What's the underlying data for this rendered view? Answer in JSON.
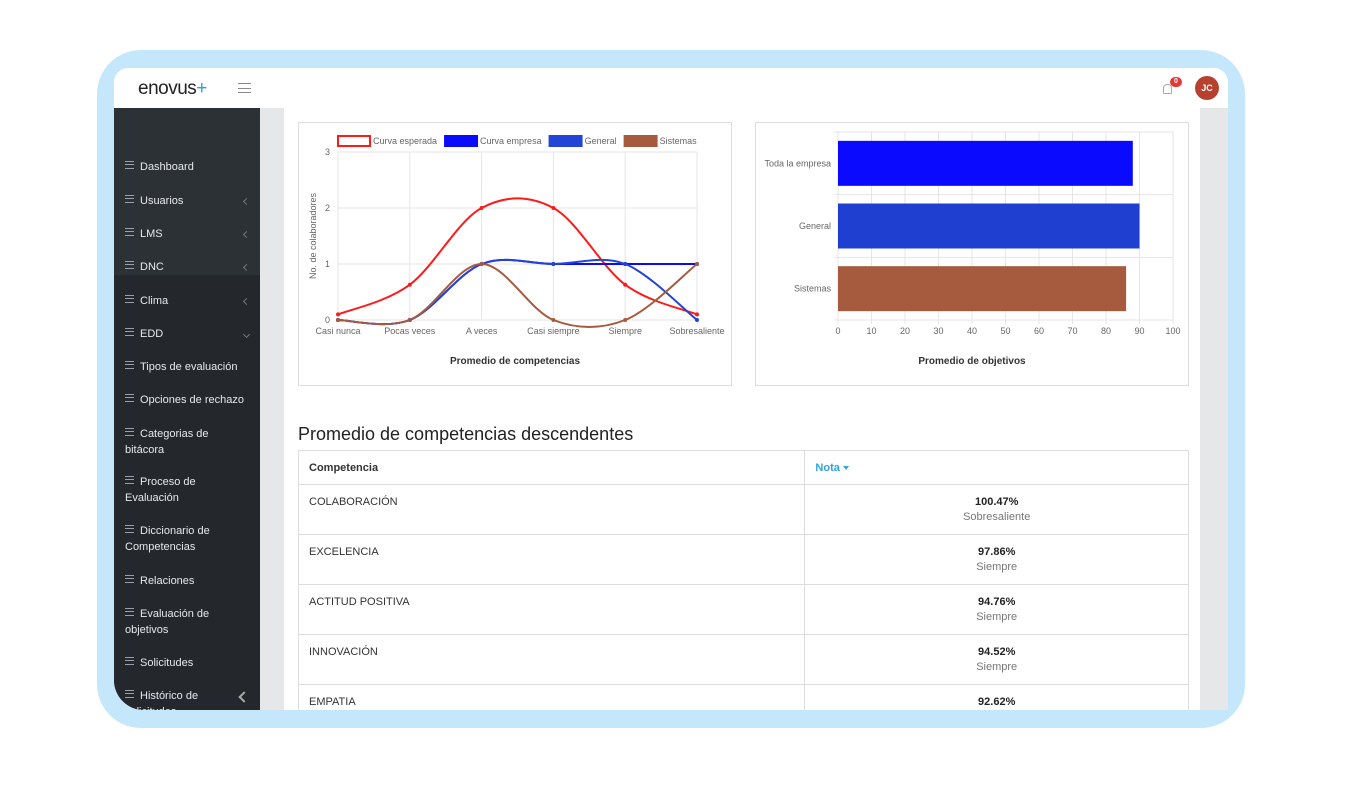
{
  "header": {
    "logo": {
      "text": "enovus",
      "accent": "+"
    },
    "notifications": "0",
    "user": "JC"
  },
  "sidebar": {
    "items": [
      "Dashboard",
      "Usuarios",
      "LMS",
      "DNC",
      "Clima",
      "EDD",
      "Tipos de evaluación",
      "Opciones de rechazo",
      "Categorias de bitácora",
      "Proceso de Evaluación",
      "Diccionario de Competencias",
      "Relaciones",
      "Evaluación de objetivos",
      "Solicitudes",
      "Histórico de solicitudes"
    ]
  },
  "chart_data": [
    {
      "type": "line",
      "xlabel": "Promedio de competencias",
      "ylabel": "No. de colaboradores",
      "categories": [
        "Casi nunca",
        "Pocas veces",
        "A veces",
        "Casi siempre",
        "Siempre",
        "Sobresaliente"
      ],
      "series": [
        {
          "name": "Curva esperada",
          "color": "#ff1a1a",
          "filled": false,
          "values": [
            0.1,
            0.63,
            2,
            2,
            0.63,
            0.1
          ]
        },
        {
          "name": "Curva empresa",
          "color": "#0a0aff",
          "values": [
            0,
            0,
            1,
            1,
            1,
            1
          ]
        },
        {
          "name": "General",
          "color": "#2344d4",
          "values": [
            0,
            0,
            1,
            1,
            1,
            0
          ]
        },
        {
          "name": "Sistemas",
          "color": "#a65b3e",
          "values": [
            0,
            0,
            1,
            0,
            0,
            1
          ]
        }
      ],
      "ylim": [
        0,
        3
      ],
      "yticks": [
        0,
        1,
        2,
        3
      ],
      "grid": true
    },
    {
      "type": "bar",
      "orientation": "horizontal",
      "xlabel": "Promedio de objetivos",
      "categories": [
        "Toda la empresa",
        "General",
        "Sistemas"
      ],
      "values": [
        88,
        90,
        86
      ],
      "colors": [
        "#0a0aff",
        "#1f3fd0",
        "#a65b3e"
      ],
      "xlim": [
        0,
        100
      ],
      "xticks": [
        0,
        10,
        20,
        30,
        40,
        50,
        60,
        70,
        80,
        90,
        100
      ],
      "grid": true
    }
  ],
  "table": {
    "title": "Promedio de competencias descendentes",
    "columns": [
      "Competencia",
      "Nota"
    ],
    "rows": [
      [
        "COLABORACIÓN",
        "100.47%",
        "Sobresaliente"
      ],
      [
        "EXCELENCIA",
        "97.86%",
        "Siempre"
      ],
      [
        "ACTITUD POSITIVA",
        "94.76%",
        "Siempre"
      ],
      [
        "INNOVACIÓN",
        "94.52%",
        "Siempre"
      ],
      [
        "EMPATIA",
        "92.62%"
      ]
    ]
  }
}
